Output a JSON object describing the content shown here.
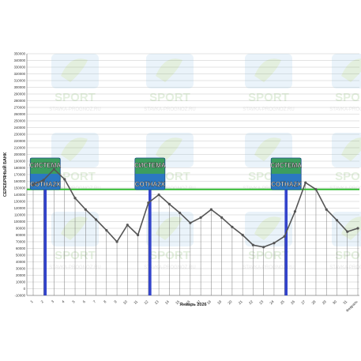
{
  "chart_data": {
    "type": "line",
    "ylabel": "СЕРЕБРЯНЫЙ БАНК",
    "xlabel": "Январь 2026",
    "ylim": [
      -10000,
      350000
    ],
    "y_tick_step": 10000,
    "grid": true,
    "x": [
      "1",
      "2",
      "3",
      "4",
      "5",
      "6",
      "7",
      "8",
      "9",
      "10",
      "11",
      "12",
      "13",
      "14",
      "15",
      "16",
      "17",
      "18",
      "19",
      "20",
      "21",
      "22",
      "23",
      "24",
      "25",
      "26",
      "27",
      "28",
      "29",
      "30",
      "31",
      "Февраль"
    ],
    "series": [
      {
        "values": [
          155000,
          162000,
          178000,
          163000,
          135000,
          118000,
          103000,
          87000,
          70000,
          95000,
          80000,
          128000,
          140000,
          126000,
          113000,
          98000,
          106000,
          118000,
          106000,
          92000,
          80000,
          65000,
          62000,
          68000,
          78000,
          115000,
          158000,
          148000,
          118000,
          102000,
          85000,
          90000
        ],
        "color": "#555555"
      }
    ],
    "reference_line": {
      "value": 148000,
      "color": "#33bb33"
    },
    "markers": [
      {
        "x_index": 1,
        "line1": "СИСТЕМА",
        "line2": "COTHA2X"
      },
      {
        "x_index": 11,
        "line1": "СИСТЕМА",
        "line2": "COTHA2X"
      },
      {
        "x_index": 24,
        "line1": "СИСТЕМА",
        "line2": "COTHA2X"
      }
    ],
    "watermark": {
      "logo_text": "SPORT",
      "url_text": "STAVKA-PROGNOZ.RU"
    },
    "colors": {
      "marker_bar": "#3344cc",
      "grid": "#c8c8c8",
      "axis_text": "#333333"
    }
  }
}
